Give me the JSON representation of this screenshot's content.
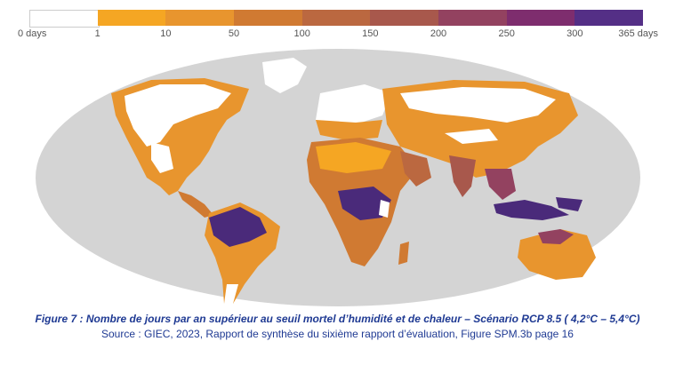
{
  "legend": {
    "bins": [
      {
        "label": "0 days",
        "color": "#ffffff"
      },
      {
        "label": "1",
        "color": "#f5a623"
      },
      {
        "label": "10",
        "color": "#e8952e"
      },
      {
        "label": "50",
        "color": "#d07a32"
      },
      {
        "label": "100",
        "color": "#bb6840"
      },
      {
        "label": "150",
        "color": "#a8584c"
      },
      {
        "label": "200",
        "color": "#934260"
      },
      {
        "label": "250",
        "color": "#7e2d6e"
      },
      {
        "label": "300",
        "color": "#542f86"
      },
      {
        "label": "365 days",
        "color": "#4a2a7a"
      }
    ]
  },
  "map": {
    "ocean_color": "#d4d4d4",
    "regions": [
      {
        "name": "North America",
        "level": "0-50"
      },
      {
        "name": "Amazon basin",
        "level": "300-365"
      },
      {
        "name": "Central Africa",
        "level": "300-365"
      },
      {
        "name": "Indonesia",
        "level": "300-365"
      },
      {
        "name": "Arabian Peninsula",
        "level": "50-150"
      },
      {
        "name": "Australia",
        "level": "10-200"
      }
    ]
  },
  "caption": {
    "figure": "Figure 7 : Nombre de jours par an supérieur au seuil mortel d’humidité et de chaleur – Scénario RCP 8.5 ( 4,2°C – 5,4°C)",
    "source": "Source : GIEC, 2023, Rapport de synthèse du sixième rapport d’évaluation, Figure SPM.3b page 16"
  }
}
